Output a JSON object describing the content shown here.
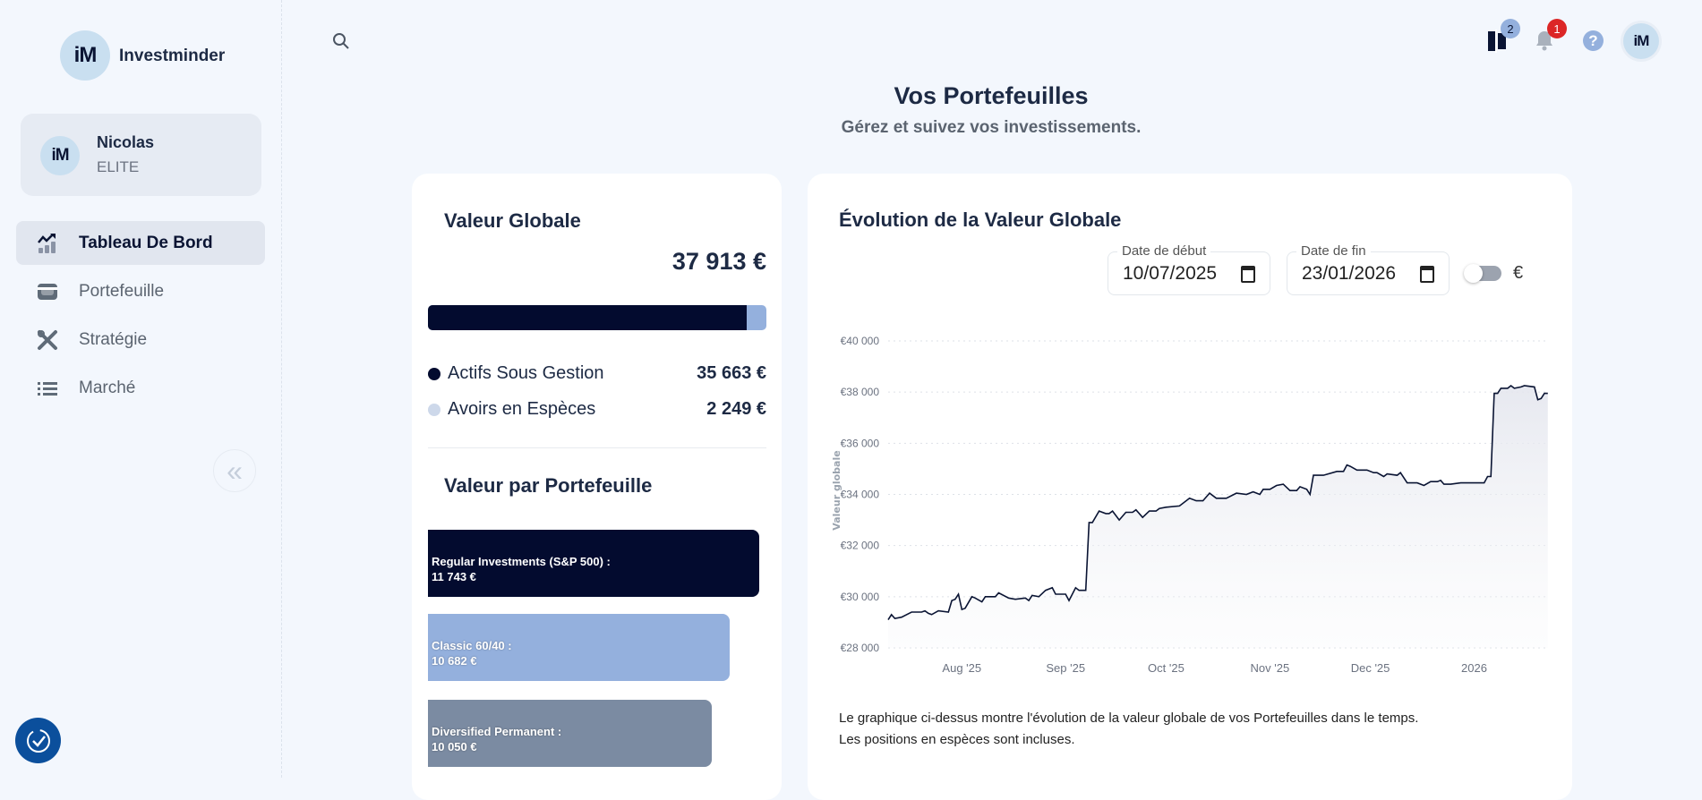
{
  "app": {
    "name": "Investminder",
    "logo_text": "iM"
  },
  "user": {
    "name": "Nicolas",
    "tier": "ELITE",
    "avatar_text": "iM"
  },
  "sidebar": {
    "items": [
      {
        "label": "Tableau De Bord",
        "icon": "chart-trend-icon",
        "active": true
      },
      {
        "label": "Portefeuille",
        "icon": "wallet-icon"
      },
      {
        "label": "Stratégie",
        "icon": "tools-icon"
      },
      {
        "label": "Marché",
        "icon": "list-icon"
      }
    ],
    "collapse": "«"
  },
  "header": {
    "notifications_a": "2",
    "notifications_b": "1",
    "help": "?",
    "avatar_text": "iM"
  },
  "page": {
    "title": "Vos Portefeuilles",
    "subtitle": "Gérez et suivez vos investissements."
  },
  "global": {
    "title": "Valeur Globale",
    "total": "37 913 €",
    "managed_fraction": 0.9406,
    "legend": [
      {
        "label": "Actifs Sous Gestion",
        "value": "35 663 €",
        "color": "#030b2f"
      },
      {
        "label": "Avoirs en Espèces",
        "value": "2 249 €",
        "color": "#cdd8ea"
      }
    ]
  },
  "portfolios": {
    "title": "Valeur par Portefeuille",
    "items": [
      {
        "name": "Regular Investments (S&P 500) :",
        "value": "11 743 €",
        "amount": 11743,
        "color": "#030b2f"
      },
      {
        "name": "Classic 60/40 :",
        "value": "10 682 €",
        "amount": 10682,
        "color": "#94b0dd"
      },
      {
        "name": "Diversified Permanent :",
        "value": "10 050 €",
        "amount": 10050,
        "color": "#7b8ba2"
      }
    ]
  },
  "evolution": {
    "title": "Évolution de la Valeur Globale",
    "start_label": "Date de début",
    "start_value": "10/07/2025",
    "end_label": "Date de fin",
    "end_value": "23/01/2026",
    "toggle_unit": "€",
    "caption1": "Le graphique ci-dessus montre l'évolution de la valeur globale de vos Portefeuilles dans le temps.",
    "caption2": "Les positions en espèces sont incluses."
  },
  "chart_data": {
    "type": "area",
    "ylabel": "Valeur globale",
    "x_unit": "days since 2025-07-10",
    "ylim": [
      28000,
      40000
    ],
    "yticks": [
      {
        "v": 40000,
        "label": "€40 000"
      },
      {
        "v": 38000,
        "label": "€38 000"
      },
      {
        "v": 36000,
        "label": "€36 000"
      },
      {
        "v": 34000,
        "label": "€34 000"
      },
      {
        "v": 32000,
        "label": "€32 000"
      },
      {
        "v": 30000,
        "label": "€30 000"
      },
      {
        "v": 28000,
        "label": "€28 000"
      }
    ],
    "xticks": [
      {
        "v": 22,
        "label": "Aug '25"
      },
      {
        "v": 53,
        "label": "Sep '25"
      },
      {
        "v": 83,
        "label": "Oct '25"
      },
      {
        "v": 114,
        "label": "Nov '25"
      },
      {
        "v": 144,
        "label": "Dec '25"
      },
      {
        "v": 175,
        "label": "2026"
      }
    ],
    "points": [
      [
        0,
        29100
      ],
      [
        1,
        29300
      ],
      [
        2,
        29150
      ],
      [
        4,
        29200
      ],
      [
        7,
        29400
      ],
      [
        10,
        29400
      ],
      [
        11,
        29450
      ],
      [
        12,
        29350
      ],
      [
        13,
        29300
      ],
      [
        15,
        29450
      ],
      [
        18,
        29400
      ],
      [
        19,
        29850
      ],
      [
        20,
        29900
      ],
      [
        21,
        30100
      ],
      [
        22,
        29500
      ],
      [
        23,
        29550
      ],
      [
        25,
        30000
      ],
      [
        26,
        29950
      ],
      [
        28,
        29800
      ],
      [
        29,
        30000
      ],
      [
        32,
        30000
      ],
      [
        33,
        30150
      ],
      [
        36,
        29950
      ],
      [
        38,
        29900
      ],
      [
        41,
        29950
      ],
      [
        42,
        29850
      ],
      [
        43,
        30050
      ],
      [
        45,
        30000
      ],
      [
        47,
        30250
      ],
      [
        49,
        30350
      ],
      [
        50,
        30100
      ],
      [
        53,
        30100
      ],
      [
        54,
        29850
      ],
      [
        56,
        30350
      ],
      [
        57,
        30250
      ],
      [
        59,
        30250
      ],
      [
        60,
        32900
      ],
      [
        61,
        32900
      ],
      [
        63,
        33350
      ],
      [
        65,
        33250
      ],
      [
        66,
        33250
      ],
      [
        67,
        33350
      ],
      [
        69,
        33000
      ],
      [
        71,
        33300
      ],
      [
        73,
        33300
      ],
      [
        74,
        33400
      ],
      [
        76,
        33100
      ],
      [
        78,
        33350
      ],
      [
        80,
        33350
      ],
      [
        81,
        33450
      ],
      [
        83,
        33500
      ],
      [
        87,
        33550
      ],
      [
        90,
        33850
      ],
      [
        92,
        33750
      ],
      [
        94,
        33750
      ],
      [
        96,
        34050
      ],
      [
        98,
        33850
      ],
      [
        101,
        33850
      ],
      [
        104,
        34050
      ],
      [
        107,
        34000
      ],
      [
        109,
        34100
      ],
      [
        111,
        34000
      ],
      [
        112,
        34200
      ],
      [
        114,
        34200
      ],
      [
        116,
        34350
      ],
      [
        118,
        34400
      ],
      [
        120,
        34150
      ],
      [
        122,
        34150
      ],
      [
        123,
        34300
      ],
      [
        125,
        34200
      ],
      [
        126,
        34000
      ],
      [
        127,
        34750
      ],
      [
        130,
        34750
      ],
      [
        134,
        34900
      ],
      [
        136,
        34900
      ],
      [
        137,
        35150
      ],
      [
        138,
        35100
      ],
      [
        140,
        34950
      ],
      [
        143,
        34950
      ],
      [
        145,
        34850
      ],
      [
        146,
        34850
      ],
      [
        148,
        34700
      ],
      [
        149,
        34800
      ],
      [
        152,
        34750
      ],
      [
        153,
        34850
      ],
      [
        155,
        34450
      ],
      [
        158,
        34450
      ],
      [
        160,
        34350
      ],
      [
        162,
        34500
      ],
      [
        164,
        34500
      ],
      [
        165,
        34550
      ],
      [
        166,
        34400
      ],
      [
        168,
        34400
      ],
      [
        171,
        34450
      ],
      [
        178,
        34450
      ],
      [
        179,
        34700
      ],
      [
        180,
        34700
      ],
      [
        181,
        37950
      ],
      [
        182,
        37950
      ],
      [
        183,
        38150
      ],
      [
        185,
        38150
      ],
      [
        186,
        38250
      ],
      [
        187,
        38150
      ],
      [
        189,
        38200
      ],
      [
        190,
        38250
      ],
      [
        193,
        38200
      ],
      [
        194,
        37700
      ],
      [
        195,
        37750
      ],
      [
        196,
        37950
      ],
      [
        197,
        37950
      ]
    ]
  }
}
